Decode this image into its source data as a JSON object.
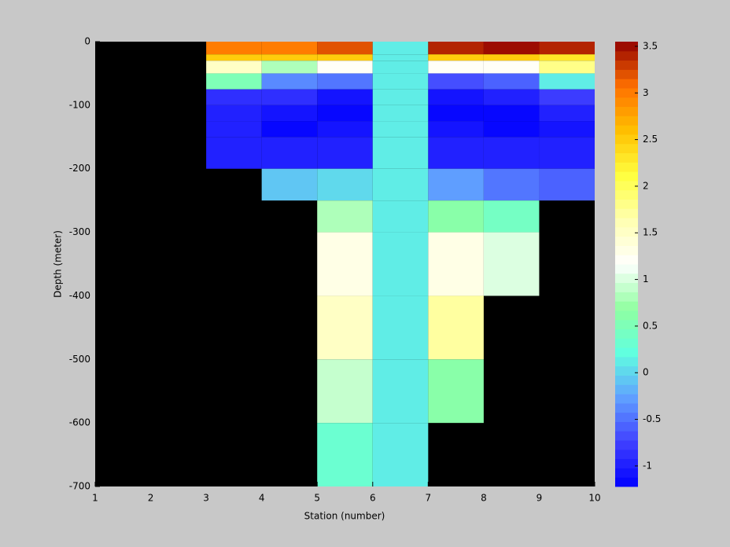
{
  "chart_data": {
    "type": "heatmap",
    "xlabel": "Station (number)",
    "ylabel": "Depth (meter)",
    "x": [
      1,
      2,
      3,
      4,
      5,
      6,
      7,
      8,
      9,
      10
    ],
    "y": [
      0,
      -20,
      -30,
      -50,
      -75,
      -100,
      -125,
      -150,
      -200,
      -250,
      -300,
      -400,
      -500,
      -600,
      -700
    ],
    "values": [
      [
        null,
        null,
        3.0,
        3.0,
        3.2,
        0.15,
        3.4,
        3.5,
        3.4
      ],
      [
        null,
        null,
        2.5,
        2.5,
        2.5,
        0.15,
        2.5,
        2.5,
        2.3
      ],
      [
        null,
        null,
        1.5,
        0.8,
        1.2,
        0.15,
        1.2,
        1.2,
        1.8
      ],
      [
        null,
        null,
        0.5,
        -0.4,
        -0.5,
        0.15,
        -0.7,
        -0.6,
        0.1
      ],
      [
        null,
        null,
        -0.85,
        -0.85,
        -1.1,
        0.15,
        -1.05,
        -0.95,
        -0.75
      ],
      [
        null,
        null,
        -0.95,
        -1.1,
        -1.2,
        0.15,
        -1.15,
        -1.2,
        -1.0
      ],
      [
        null,
        null,
        -1.0,
        -1.2,
        -1.1,
        0.15,
        -1.1,
        -1.15,
        -1.1
      ],
      [
        null,
        null,
        -1.0,
        -1.0,
        -0.95,
        0.15,
        -0.95,
        -1.0,
        -1.0
      ],
      [
        null,
        null,
        null,
        -0.1,
        0.0,
        0.15,
        -0.3,
        -0.5,
        -0.6
      ],
      [
        null,
        null,
        null,
        null,
        0.8,
        0.15,
        0.6,
        0.4,
        null
      ],
      [
        null,
        null,
        null,
        null,
        1.3,
        0.15,
        1.3,
        1.0,
        null
      ],
      [
        null,
        null,
        null,
        null,
        1.5,
        0.15,
        1.7,
        null,
        null
      ],
      [
        null,
        null,
        null,
        null,
        0.9,
        0.15,
        0.6,
        null,
        null
      ],
      [
        null,
        null,
        null,
        null,
        0.3,
        0.15,
        null,
        null,
        null
      ]
    ],
    "xlim": [
      1,
      10
    ],
    "xticks": [
      1,
      2,
      3,
      4,
      5,
      6,
      7,
      8,
      9,
      10
    ],
    "ylim": [
      -700,
      0
    ],
    "yticks": [
      -700,
      -600,
      -500,
      -400,
      -300,
      -200,
      -100,
      0
    ],
    "clim": [
      -1.22,
      3.55
    ],
    "cticks": [
      -1,
      -0.5,
      0,
      0.5,
      1,
      1.5,
      2,
      2.5,
      3,
      3.5
    ],
    "colormap": [
      "#0000ff",
      "#4040ff",
      "#60a0ff",
      "#60ffe0",
      "#90ffa0",
      "#ffffff",
      "#ffffb0",
      "#ffff40",
      "#ffc000",
      "#ff7000",
      "#900000"
    ],
    "levels": 48,
    "background": "#000000"
  }
}
